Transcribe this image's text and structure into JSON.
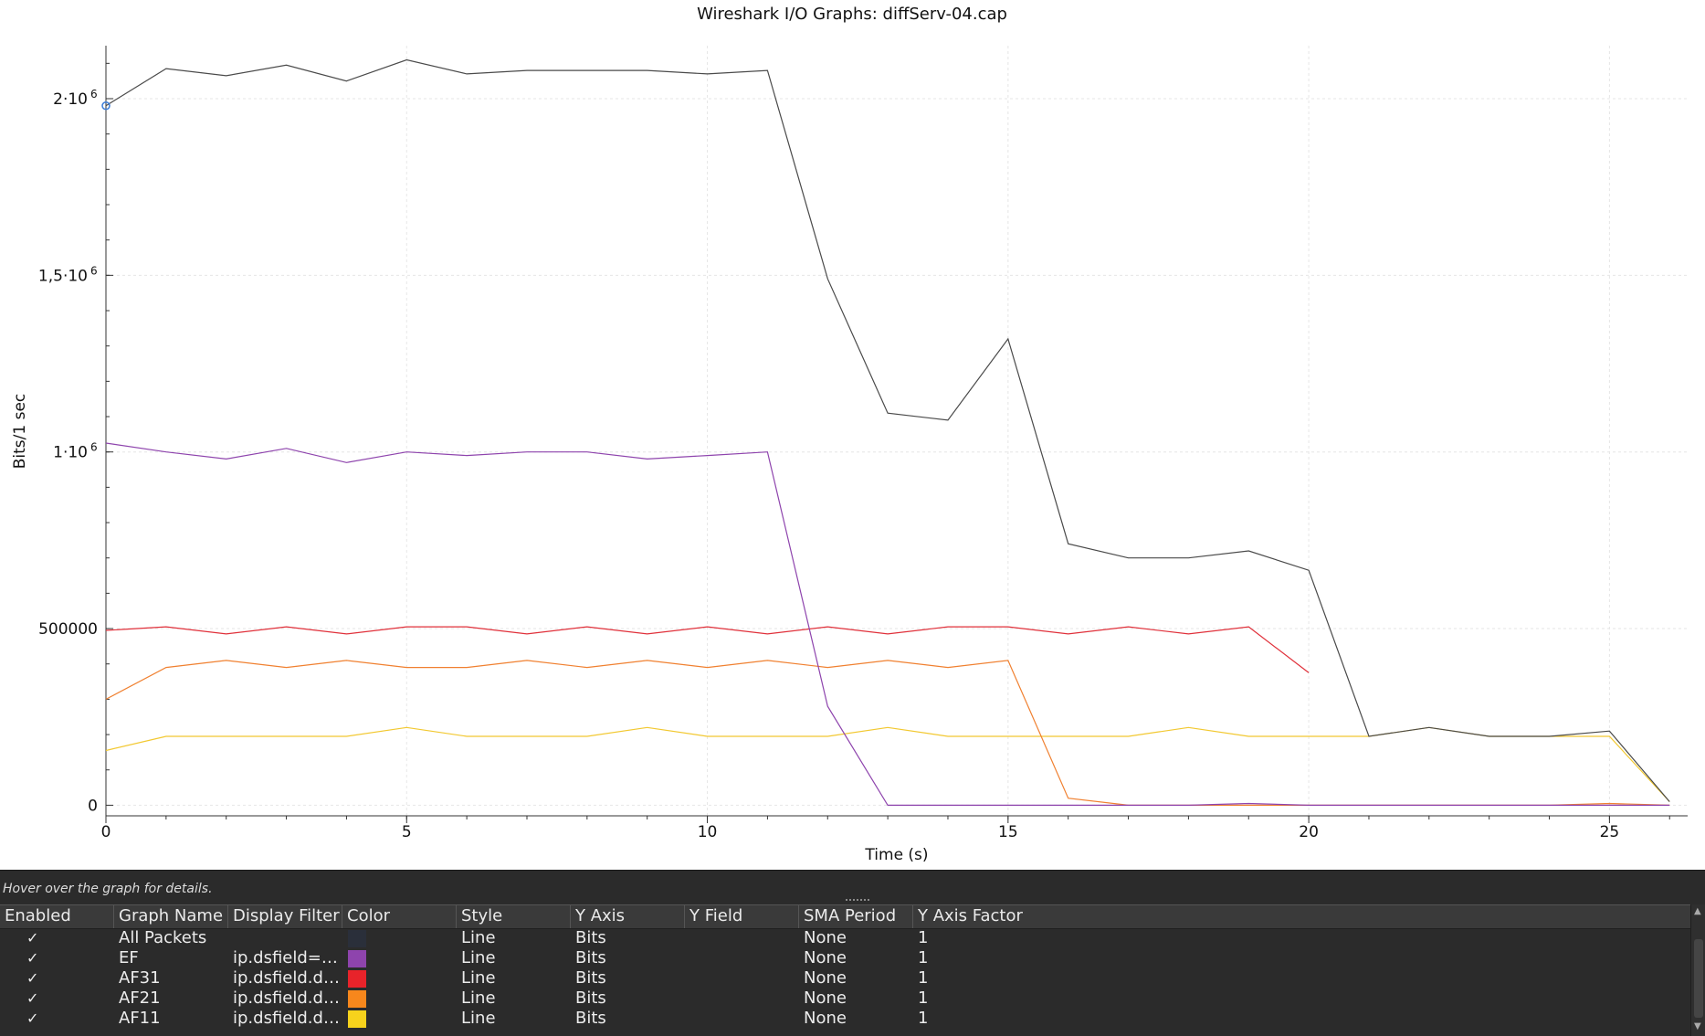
{
  "window": {
    "title": "Wireshark I/O Graphs: diffServ-04.cap"
  },
  "chart_data": {
    "type": "line",
    "title": "Wireshark I/O Graphs: diffServ-04.cap",
    "xlabel": "Time (s)",
    "ylabel": "Bits/1 sec",
    "xlim": [
      0,
      26.3
    ],
    "ylim": [
      -30000,
      2150000
    ],
    "x_ticks": [
      {
        "value": 0,
        "label": "0"
      },
      {
        "value": 5,
        "label": "5"
      },
      {
        "value": 10,
        "label": "10"
      },
      {
        "value": 15,
        "label": "15"
      },
      {
        "value": 20,
        "label": "20"
      },
      {
        "value": 25,
        "label": "25"
      }
    ],
    "y_ticks": [
      {
        "value": 0,
        "label": "0"
      },
      {
        "value": 500000,
        "label": "500000"
      },
      {
        "value": 1000000,
        "label": "1·10",
        "exp": "6"
      },
      {
        "value": 1500000,
        "label": "1,5·10",
        "exp": "6"
      },
      {
        "value": 2000000,
        "label": "2·10",
        "exp": "6"
      }
    ],
    "grid": true,
    "series": [
      {
        "name": "All Packets",
        "color": "#4a4a4a",
        "x": [
          0,
          1,
          2,
          3,
          4,
          5,
          6,
          7,
          8,
          9,
          10,
          11,
          12,
          13,
          14,
          15,
          16,
          17,
          18,
          19,
          20,
          21,
          22,
          23,
          24,
          25,
          26
        ],
        "values": [
          1980000,
          2085000,
          2065000,
          2095000,
          2050000,
          2110000,
          2070000,
          2080000,
          2080000,
          2080000,
          2070000,
          2080000,
          1490000,
          1110000,
          1090000,
          1320000,
          740000,
          700000,
          700000,
          720000,
          665000,
          195000,
          220000,
          195000,
          195000,
          210000,
          10000
        ]
      },
      {
        "name": "EF",
        "color": "#8e44ad",
        "x": [
          0,
          1,
          2,
          3,
          4,
          5,
          6,
          7,
          8,
          9,
          10,
          11,
          12,
          13,
          14,
          15,
          16,
          17,
          18,
          19,
          20,
          21,
          22,
          23,
          24,
          25,
          26
        ],
        "values": [
          1025000,
          1000000,
          980000,
          1010000,
          970000,
          1000000,
          990000,
          1000000,
          1000000,
          980000,
          990000,
          1000000,
          280000,
          0,
          0,
          0,
          0,
          0,
          0,
          5000,
          0,
          0,
          0,
          0,
          0,
          0,
          0
        ]
      },
      {
        "name": "AF31",
        "color": "#e0303a",
        "x": [
          0,
          1,
          2,
          3,
          4,
          5,
          6,
          7,
          8,
          9,
          10,
          11,
          12,
          13,
          14,
          15,
          16,
          17,
          18,
          19,
          20
        ],
        "values": [
          495000,
          505000,
          485000,
          505000,
          485000,
          505000,
          505000,
          485000,
          505000,
          485000,
          505000,
          485000,
          505000,
          485000,
          505000,
          505000,
          485000,
          505000,
          485000,
          505000,
          375000
        ]
      },
      {
        "name": "AF21",
        "color": "#f08030",
        "x": [
          0,
          1,
          2,
          3,
          4,
          5,
          6,
          7,
          8,
          9,
          10,
          11,
          12,
          13,
          14,
          15,
          16,
          17,
          18,
          19,
          20,
          21,
          22,
          23,
          24,
          25,
          26
        ],
        "values": [
          300000,
          390000,
          410000,
          390000,
          410000,
          390000,
          390000,
          410000,
          390000,
          410000,
          390000,
          410000,
          390000,
          410000,
          390000,
          410000,
          20000,
          0,
          0,
          0,
          0,
          0,
          0,
          0,
          0,
          5000,
          0
        ]
      },
      {
        "name": "AF11",
        "color": "#f2c830",
        "x": [
          0,
          1,
          2,
          3,
          4,
          5,
          6,
          7,
          8,
          9,
          10,
          11,
          12,
          13,
          14,
          15,
          16,
          17,
          18,
          19,
          20,
          21,
          22,
          23,
          24,
          25,
          26
        ],
        "values": [
          155000,
          195000,
          195000,
          195000,
          195000,
          220000,
          195000,
          195000,
          195000,
          220000,
          195000,
          195000,
          195000,
          220000,
          195000,
          195000,
          195000,
          195000,
          220000,
          195000,
          195000,
          195000,
          220000,
          195000,
          195000,
          195000,
          10000
        ]
      }
    ]
  },
  "status": {
    "hint": "Hover over the graph for details."
  },
  "table": {
    "headers": [
      "Enabled",
      "Graph Name",
      "Display Filter",
      "Color",
      "Style",
      "Y Axis",
      "Y Field",
      "SMA Period",
      "Y Axis Factor"
    ],
    "rows": [
      {
        "enabled": "✓",
        "name": "All Packets",
        "filter": "",
        "color": "#2a2f3a",
        "style": "Line",
        "y_axis": "Bits",
        "y_field": "",
        "sma": "None",
        "factor": "1"
      },
      {
        "enabled": "✓",
        "name": "EF",
        "filter": "ip.dsfield=…",
        "color": "#8e44ad",
        "style": "Line",
        "y_axis": "Bits",
        "y_field": "",
        "sma": "None",
        "factor": "1"
      },
      {
        "enabled": "✓",
        "name": "AF31",
        "filter": "ip.dsfield.d…",
        "color": "#e8232a",
        "style": "Line",
        "y_axis": "Bits",
        "y_field": "",
        "sma": "None",
        "factor": "1"
      },
      {
        "enabled": "✓",
        "name": "AF21",
        "filter": "ip.dsfield.d…",
        "color": "#f7871c",
        "style": "Line",
        "y_axis": "Bits",
        "y_field": "",
        "sma": "None",
        "factor": "1"
      },
      {
        "enabled": "✓",
        "name": "AF11",
        "filter": "ip.dsfield.d…",
        "color": "#f7d21c",
        "style": "Line",
        "y_axis": "Bits",
        "y_field": "",
        "sma": "None",
        "factor": "1"
      }
    ]
  }
}
